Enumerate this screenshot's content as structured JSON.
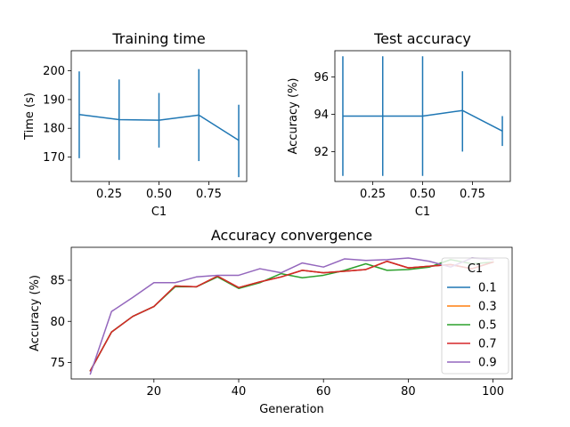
{
  "chart_data": [
    {
      "id": "training_time",
      "type": "line",
      "title": "Training time",
      "xlabel": "C1",
      "ylabel": "Time (s)",
      "xlim": [
        0.06,
        0.94
      ],
      "ylim": [
        161.5,
        207
      ],
      "xticks": [
        {
          "v": 0.25,
          "label": "0.25"
        },
        {
          "v": 0.5,
          "label": "0.50"
        },
        {
          "v": 0.75,
          "label": "0.75"
        }
      ],
      "yticks": [
        {
          "v": 170,
          "label": "170"
        },
        {
          "v": 180,
          "label": "180"
        },
        {
          "v": 190,
          "label": "190"
        },
        {
          "v": 200,
          "label": "200"
        }
      ],
      "color": "#1f77b4",
      "x": [
        0.1,
        0.3,
        0.5,
        0.7,
        0.9
      ],
      "y": [
        184.8,
        183.0,
        182.8,
        184.6,
        175.8
      ],
      "err_low": [
        169.6,
        169.0,
        173.3,
        168.6,
        163.0
      ],
      "err_high": [
        199.8,
        197.0,
        192.3,
        200.6,
        188.2
      ]
    },
    {
      "id": "test_accuracy",
      "type": "line",
      "title": "Test accuracy",
      "xlabel": "C1",
      "ylabel": "Accuracy (%)",
      "xlim": [
        0.06,
        0.94
      ],
      "ylim": [
        90.4,
        97.4
      ],
      "xticks": [
        {
          "v": 0.25,
          "label": "0.25"
        },
        {
          "v": 0.5,
          "label": "0.50"
        },
        {
          "v": 0.75,
          "label": "0.75"
        }
      ],
      "yticks": [
        {
          "v": 92,
          "label": "92"
        },
        {
          "v": 94,
          "label": "94"
        },
        {
          "v": 96,
          "label": "96"
        }
      ],
      "color": "#1f77b4",
      "x": [
        0.1,
        0.3,
        0.5,
        0.7,
        0.9
      ],
      "y": [
        93.9,
        93.9,
        93.9,
        94.2,
        93.1
      ],
      "err_low": [
        90.7,
        90.7,
        90.7,
        92.0,
        92.3
      ],
      "err_high": [
        97.1,
        97.1,
        97.1,
        96.3,
        93.9
      ]
    },
    {
      "id": "accuracy_convergence",
      "type": "line",
      "title": "Accuracy convergence",
      "xlabel": "Generation",
      "ylabel": "Accuracy (%)",
      "xlim": [
        0.5,
        104.5
      ],
      "ylim": [
        73,
        89
      ],
      "xticks": [
        {
          "v": 20,
          "label": "20"
        },
        {
          "v": 40,
          "label": "40"
        },
        {
          "v": 60,
          "label": "60"
        },
        {
          "v": 80,
          "label": "80"
        },
        {
          "v": 100,
          "label": "100"
        }
      ],
      "yticks": [
        {
          "v": 75,
          "label": "75"
        },
        {
          "v": 80,
          "label": "80"
        },
        {
          "v": 85,
          "label": "85"
        }
      ],
      "x": [
        5,
        10,
        15,
        20,
        25,
        30,
        35,
        40,
        45,
        50,
        55,
        60,
        65,
        70,
        75,
        80,
        85,
        90,
        95,
        100
      ],
      "legend_title": "C1",
      "legend_position": "center-right",
      "series": [
        {
          "name": "0.1",
          "color": "#1f77b4",
          "values": [
            74.0,
            78.7,
            80.6,
            81.8,
            84.3,
            84.2,
            85.5,
            84.1,
            84.8,
            85.4,
            86.2,
            85.9,
            86.1,
            86.3,
            87.3,
            86.5,
            86.7,
            86.9,
            86.4,
            87.2
          ]
        },
        {
          "name": "0.3",
          "color": "#ff7f0e",
          "values": [
            74.0,
            78.7,
            80.6,
            81.8,
            84.3,
            84.2,
            85.5,
            84.1,
            84.8,
            85.4,
            86.2,
            85.9,
            86.1,
            86.3,
            87.3,
            86.5,
            86.7,
            86.9,
            86.4,
            87.2
          ]
        },
        {
          "name": "0.5",
          "color": "#2ca02c",
          "values": [
            74.0,
            78.7,
            80.6,
            81.8,
            84.2,
            84.2,
            85.4,
            84.0,
            84.7,
            85.8,
            85.3,
            85.6,
            86.2,
            87.0,
            86.2,
            86.3,
            86.6,
            87.5,
            87.0,
            87.2
          ]
        },
        {
          "name": "0.7",
          "color": "#d62728",
          "values": [
            74.0,
            78.7,
            80.6,
            81.8,
            84.3,
            84.2,
            85.5,
            84.1,
            84.8,
            85.4,
            86.2,
            85.9,
            86.1,
            86.3,
            87.3,
            86.5,
            86.7,
            86.9,
            86.4,
            87.2
          ]
        },
        {
          "name": "0.9",
          "color": "#9467bd",
          "values": [
            73.6,
            81.2,
            82.9,
            84.7,
            84.7,
            85.4,
            85.6,
            85.6,
            86.4,
            85.9,
            87.1,
            86.6,
            87.6,
            87.4,
            87.5,
            87.7,
            87.3,
            86.6,
            87.7,
            87.5
          ]
        }
      ]
    }
  ]
}
